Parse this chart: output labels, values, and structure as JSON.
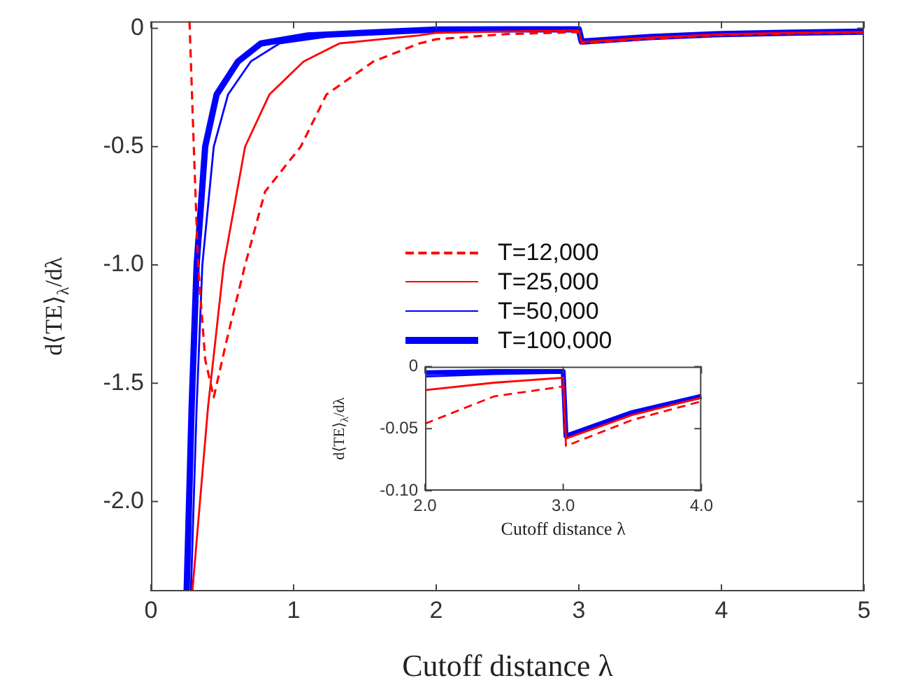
{
  "chart_data": [
    {
      "type": "line",
      "xlabel": "Cutoff distance λ",
      "ylabel": "d⟨TE⟩$_{λ}$/dλ",
      "xlim": [
        0,
        5
      ],
      "xticks": [
        0,
        1,
        2,
        3,
        4,
        5
      ],
      "ylim": [
        -2.38,
        0.03
      ],
      "yticks": [
        0,
        {
          "value": -0.5,
          "label": "-0.5"
        },
        {
          "value": -1,
          "label": "-1.0"
        },
        {
          "value": -1.5,
          "label": "-1.5"
        },
        {
          "value": -2,
          "label": "-2.0"
        }
      ],
      "legend": "right",
      "marker": "none",
      "series": [
        {
          "name": "T=12,000",
          "color": "#ff0000",
          "line_style": "dashed",
          "x": [
            0.27,
            0.3,
            0.33,
            0.38,
            0.44,
            0.53,
            0.66,
            0.8,
            1.05,
            1.23,
            1.56,
            1.88,
            2.0,
            2.5,
            3.0,
            3.02,
            3.5,
            4.0,
            4.5,
            5.0
          ],
          "values": [
            0.03,
            -0.5,
            -1.0,
            -1.4,
            -1.56,
            -1.32,
            -1.0,
            -0.69,
            -0.5,
            -0.28,
            -0.14,
            -0.064,
            -0.046,
            -0.024,
            -0.016,
            -0.064,
            -0.043,
            -0.028,
            -0.022,
            -0.018
          ]
        },
        {
          "name": "T=25,000",
          "color": "#ff0000",
          "x": [
            0.29,
            0.4,
            0.51,
            0.66,
            0.83,
            1.07,
            1.32,
            1.88,
            2.0,
            2.5,
            3.0,
            3.02,
            3.5,
            4.0,
            4.5,
            5.0
          ],
          "values": [
            -2.38,
            -1.6,
            -1.0,
            -0.5,
            -0.28,
            -0.14,
            -0.064,
            -0.03,
            -0.019,
            -0.013,
            -0.009,
            -0.058,
            -0.039,
            -0.025,
            -0.019,
            -0.015
          ]
        },
        {
          "name": "T=50,000",
          "color": "#0000ff",
          "x": [
            0.28,
            0.32,
            0.36,
            0.44,
            0.54,
            0.7,
            0.9,
            1.3,
            2.0,
            2.5,
            3.0,
            3.02,
            3.5,
            4.0,
            4.5,
            5.0
          ],
          "values": [
            -2.38,
            -1.6,
            -1.0,
            -0.5,
            -0.28,
            -0.14,
            -0.064,
            -0.03,
            -0.008,
            -0.006,
            -0.005,
            -0.056,
            -0.037,
            -0.024,
            -0.018,
            -0.014
          ]
        },
        {
          "name": "T=100,000",
          "color": "#0000ff",
          "x": [
            0.25,
            0.285,
            0.32,
            0.38,
            0.46,
            0.61,
            0.77,
            1.1,
            2.0,
            2.5,
            3.0,
            3.02,
            3.5,
            4.0,
            4.5,
            5.0
          ],
          "values": [
            -2.38,
            -1.6,
            -1.0,
            -0.5,
            -0.28,
            -0.14,
            -0.064,
            -0.03,
            -0.005,
            -0.004,
            -0.004,
            -0.056,
            -0.037,
            -0.024,
            -0.018,
            -0.014
          ]
        }
      ]
    },
    {
      "type": "line",
      "xlabel": "Cutoff distance λ",
      "ylabel": "d⟨TE⟩$_{λ}$/dλ",
      "xlim": [
        2,
        4
      ],
      "xticks": [
        {
          "value": 2,
          "label": "2.0"
        },
        {
          "value": 3,
          "label": "3.0"
        },
        {
          "value": 4,
          "label": "4.0"
        }
      ],
      "ylim": [
        -0.1,
        0
      ],
      "yticks": [
        0,
        {
          "value": -0.05,
          "label": "-0.05"
        },
        {
          "value": -0.1,
          "label": "-0.10"
        }
      ],
      "marker": "none",
      "series": [
        {
          "color": "#ff0000",
          "line_style": "dashed",
          "x": [
            2.0,
            2.5,
            3.0,
            3.02,
            3.5,
            4.0
          ],
          "values": [
            -0.046,
            -0.024,
            -0.016,
            -0.064,
            -0.043,
            -0.028
          ]
        },
        {
          "color": "#ff0000",
          "x": [
            2.0,
            2.5,
            3.0,
            3.02,
            3.5,
            4.0
          ],
          "values": [
            -0.019,
            -0.013,
            -0.009,
            -0.058,
            -0.039,
            -0.025
          ]
        },
        {
          "color": "#0000ff",
          "x": [
            2.0,
            2.5,
            3.0,
            3.02,
            3.5,
            4.0
          ],
          "values": [
            -0.008,
            -0.006,
            -0.005,
            -0.056,
            -0.037,
            -0.024
          ]
        },
        {
          "color": "#0000ff",
          "x": [
            2.0,
            2.5,
            3.0,
            3.02,
            3.5,
            4.0
          ],
          "values": [
            -0.005,
            -0.004,
            -0.004,
            -0.056,
            -0.037,
            -0.024
          ]
        }
      ]
    }
  ]
}
